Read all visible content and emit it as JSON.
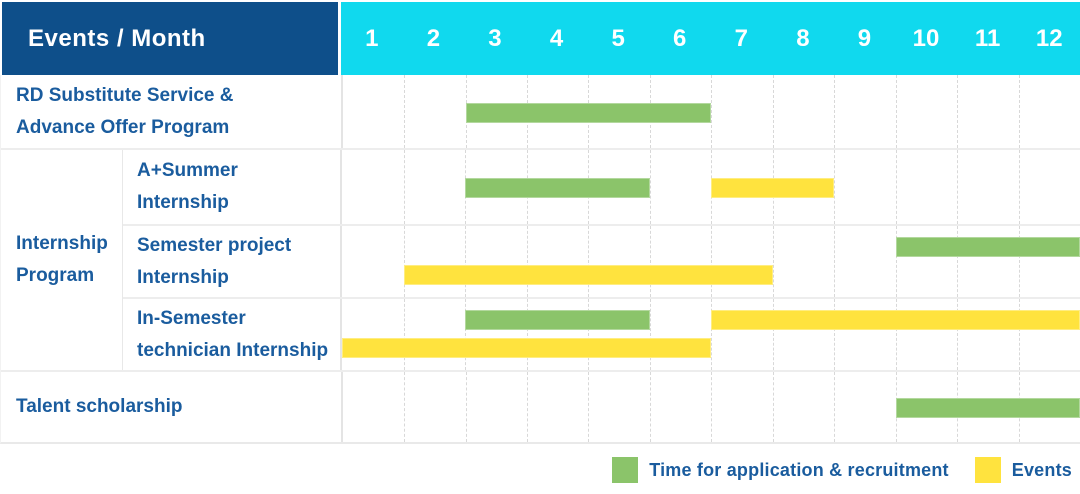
{
  "colors": {
    "header_bg": "#0E4F8A",
    "months_bg": "#10D9EE",
    "application": "#8BC46A",
    "event": "#FFE33E",
    "label_text": "#1A5C9E"
  },
  "header": {
    "title": "Events / Month",
    "months": [
      "1",
      "2",
      "3",
      "4",
      "5",
      "6",
      "7",
      "8",
      "9",
      "10",
      "11",
      "12"
    ]
  },
  "chart_data": {
    "type": "gantt",
    "unit": "month",
    "axis_range": [
      1,
      12
    ],
    "legend_position": "bottom-right",
    "rows": [
      {
        "label": "RD Substitute Service &\nAdvance Offer Program",
        "group": null,
        "bars": [
          {
            "kind": "application",
            "start": 3,
            "end": 6,
            "lane": "center"
          }
        ]
      },
      {
        "label": "A+Summer\nInternship",
        "group": "Internship\nProgram",
        "bars": [
          {
            "kind": "application",
            "start": 3,
            "end": 5,
            "lane": "center"
          },
          {
            "kind": "event",
            "start": 7,
            "end": 8,
            "lane": "center"
          }
        ]
      },
      {
        "label": "Semester project\nInternship",
        "group": "Internship\nProgram",
        "bars": [
          {
            "kind": "application",
            "start": 10,
            "end": 12,
            "lane": "top"
          },
          {
            "kind": "event",
            "start": 2,
            "end": 7,
            "lane": "bottom"
          }
        ]
      },
      {
        "label": "In-Semester\ntechnician Internship",
        "group": "Internship\nProgram",
        "bars": [
          {
            "kind": "application",
            "start": 3,
            "end": 5,
            "lane": "top"
          },
          {
            "kind": "event",
            "start": 7,
            "end": 12,
            "lane": "top"
          },
          {
            "kind": "event",
            "start": 1,
            "end": 6,
            "lane": "bottom"
          }
        ]
      },
      {
        "label": "Talent scholarship",
        "group": null,
        "bars": [
          {
            "kind": "application",
            "start": 10,
            "end": 12,
            "lane": "center"
          }
        ]
      }
    ]
  },
  "legend": {
    "items": [
      {
        "kind": "application",
        "label": "Time for application & recruitment"
      },
      {
        "kind": "event",
        "label": "Events"
      }
    ]
  }
}
